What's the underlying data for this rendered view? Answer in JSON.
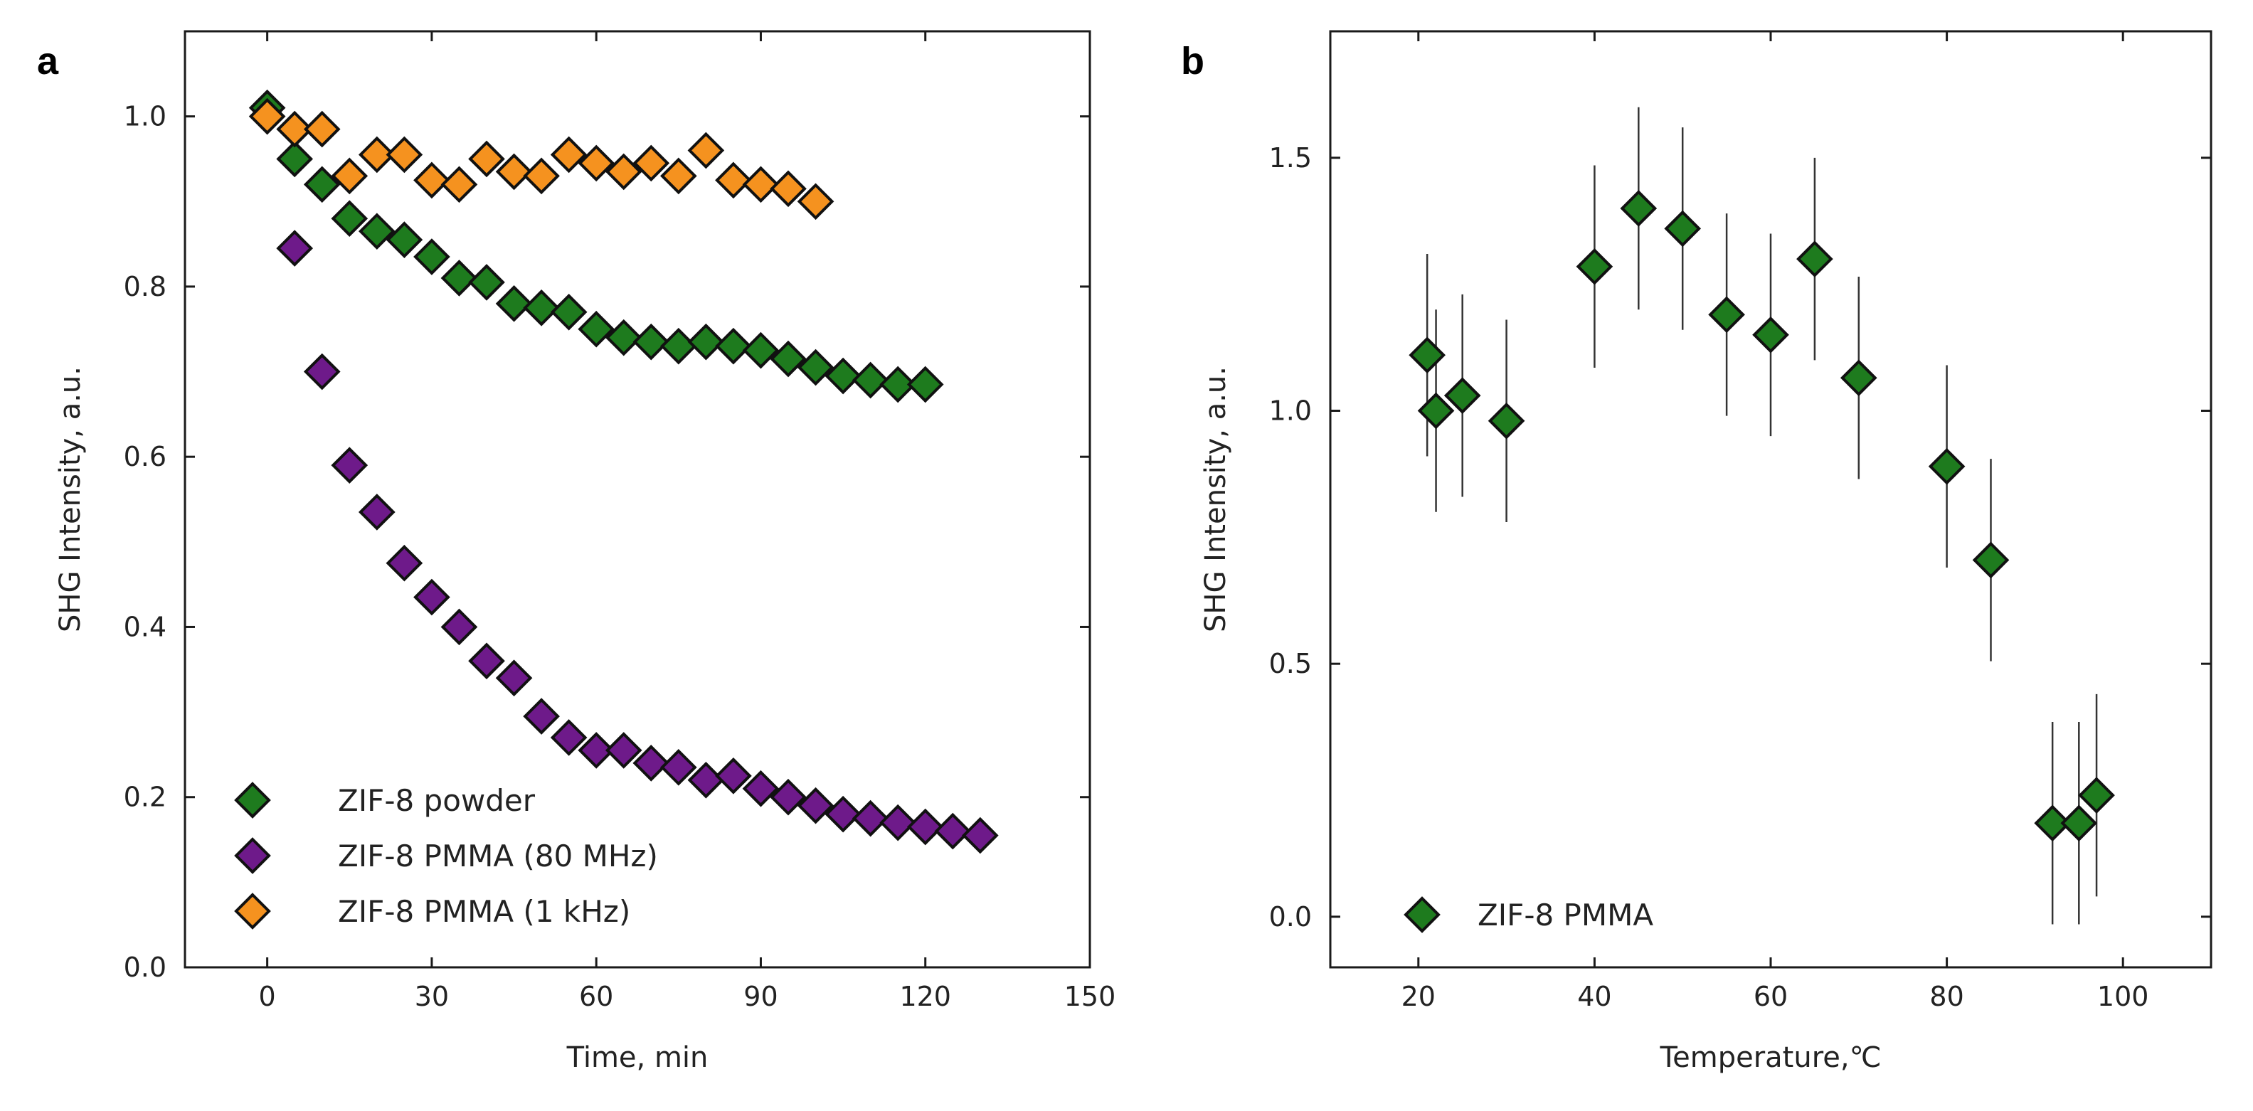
{
  "panels": {
    "a": {
      "label": "a"
    },
    "b": {
      "label": "b"
    }
  },
  "colors": {
    "green": "#1e7b1e",
    "purple": "#6e1a8a",
    "orange": "#f5921f",
    "frame": "#1a1a1a"
  },
  "chart_data": [
    {
      "id": "a",
      "type": "scatter",
      "title": "",
      "xlabel": "Time, min",
      "ylabel": "SHG Intensity, a.u.",
      "xlim": [
        -15,
        150
      ],
      "ylim": [
        0.0,
        1.1
      ],
      "xticks": [
        0,
        30,
        60,
        90,
        120,
        150
      ],
      "yticks": [
        0.0,
        0.2,
        0.4,
        0.6,
        0.8,
        1.0
      ],
      "xtick_labels": [
        "0",
        "30",
        "60",
        "90",
        "120",
        "150"
      ],
      "ytick_labels": [
        "0.0",
        "0.2",
        "0.4",
        "0.6",
        "0.8",
        "1.0"
      ],
      "legend_position": "bottom-left",
      "series": [
        {
          "name": "ZIF-8 powder",
          "color": "#1e7b1e",
          "x": [
            0,
            5,
            10,
            15,
            20,
            25,
            30,
            35,
            40,
            45,
            50,
            55,
            60,
            65,
            70,
            75,
            80,
            85,
            90,
            95,
            100,
            105,
            110,
            115,
            120
          ],
          "y": [
            1.01,
            0.95,
            0.92,
            0.88,
            0.865,
            0.855,
            0.835,
            0.81,
            0.805,
            0.78,
            0.775,
            0.77,
            0.75,
            0.74,
            0.735,
            0.73,
            0.735,
            0.73,
            0.725,
            0.715,
            0.705,
            0.695,
            0.69,
            0.685,
            0.685
          ]
        },
        {
          "name": "ZIF-8 PMMA (80 MHz)",
          "color": "#6e1a8a",
          "x": [
            5,
            10,
            15,
            20,
            25,
            30,
            35,
            40,
            45,
            50,
            55,
            60,
            65,
            70,
            75,
            80,
            85,
            90,
            95,
            100,
            105,
            110,
            115,
            120,
            125,
            130
          ],
          "y": [
            0.845,
            0.7,
            0.59,
            0.535,
            0.475,
            0.435,
            0.4,
            0.36,
            0.34,
            0.295,
            0.27,
            0.255,
            0.255,
            0.24,
            0.235,
            0.22,
            0.225,
            0.21,
            0.2,
            0.19,
            0.18,
            0.175,
            0.17,
            0.165,
            0.16,
            0.155
          ]
        },
        {
          "name": "ZIF-8 PMMA (1 kHz)",
          "color": "#f5921f",
          "x": [
            0,
            5,
            10,
            15,
            20,
            25,
            30,
            35,
            40,
            45,
            50,
            55,
            60,
            65,
            70,
            75,
            80,
            85,
            90,
            95,
            100
          ],
          "y": [
            1.0,
            0.985,
            0.985,
            0.93,
            0.955,
            0.955,
            0.925,
            0.92,
            0.95,
            0.935,
            0.93,
            0.955,
            0.945,
            0.935,
            0.945,
            0.93,
            0.96,
            0.925,
            0.92,
            0.915,
            0.9
          ]
        }
      ]
    },
    {
      "id": "b",
      "type": "scatter",
      "title": "",
      "xlabel": "Temperature,℃",
      "ylabel": "SHG Intensity, a.u.",
      "xlim": [
        10,
        110
      ],
      "ylim": [
        -0.1,
        1.75
      ],
      "xticks": [
        20,
        40,
        60,
        80,
        100
      ],
      "yticks": [
        0.0,
        0.5,
        1.0,
        1.5
      ],
      "xtick_labels": [
        "20",
        "40",
        "60",
        "80",
        "100"
      ],
      "ytick_labels": [
        "0.0",
        "0.5",
        "1.0",
        "1.5"
      ],
      "legend_position": "bottom-left",
      "series": [
        {
          "name": "ZIF-8 PMMA",
          "color": "#1e7b1e",
          "x": [
            21,
            22,
            25,
            30,
            40,
            45,
            50,
            55,
            60,
            65,
            70,
            80,
            85,
            92,
            95,
            97
          ],
          "y": [
            1.11,
            1.0,
            1.03,
            0.98,
            1.285,
            1.4,
            1.36,
            1.19,
            1.15,
            1.3,
            1.065,
            0.89,
            0.705,
            0.185,
            0.185,
            0.24
          ],
          "error": [
            0.2,
            0.2,
            0.2,
            0.2,
            0.2,
            0.2,
            0.2,
            0.2,
            0.2,
            0.2,
            0.2,
            0.2,
            0.2,
            0.2,
            0.2,
            0.2
          ]
        }
      ]
    }
  ]
}
